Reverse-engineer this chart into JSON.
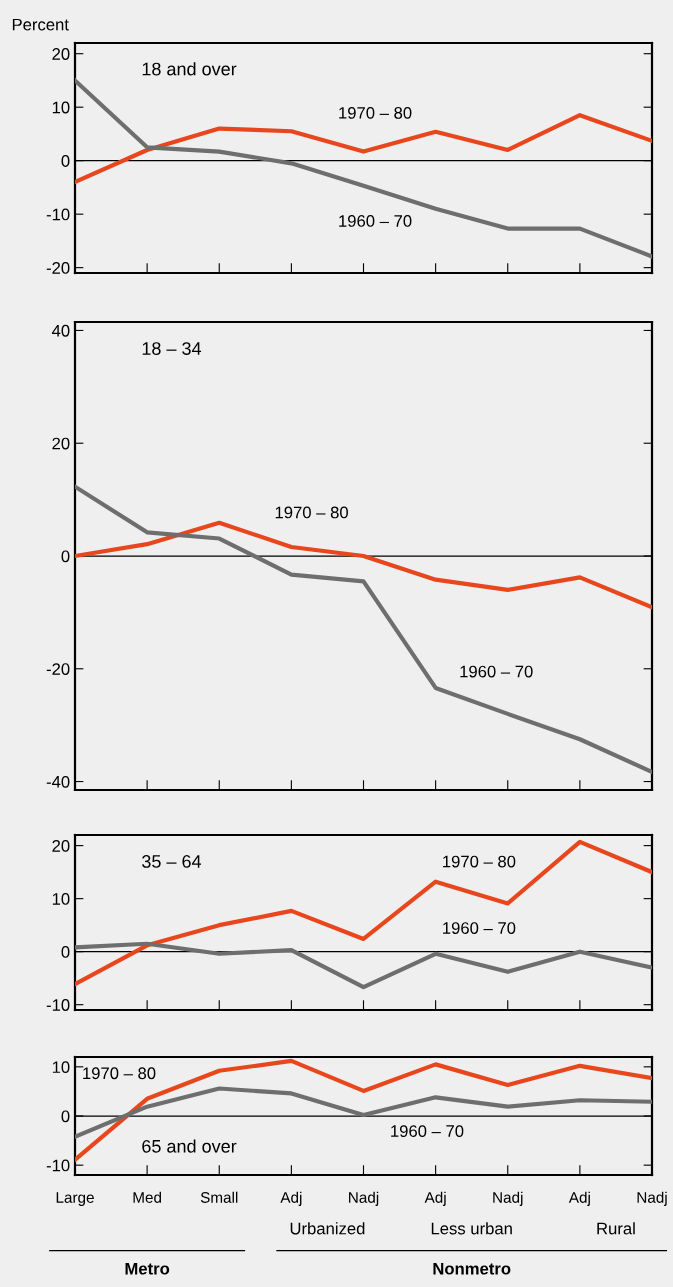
{
  "chart_data": [
    {
      "type": "line",
      "title": "18 and over",
      "ylabel": "Percent",
      "categories": [
        null,
        null,
        null,
        null,
        null,
        null,
        null,
        null,
        null
      ],
      "ylim": [
        -21,
        22
      ],
      "yticks": [
        -20,
        -10,
        0,
        10,
        20
      ],
      "tick_labels": "y",
      "ref_lines": [
        {
          "axis": "y",
          "value": 0,
          "color": "#000000"
        }
      ],
      "series": [
        {
          "name": "1970 – 80",
          "color": "#e8461c",
          "values": [
            -4,
            2,
            6,
            5.5,
            1.7,
            5.4,
            2,
            8.5,
            3.7
          ]
        },
        {
          "name": "1960 – 70",
          "color": "#6e6e6e",
          "values": [
            15,
            2.5,
            1.7,
            -0.5,
            -4.7,
            -9,
            -12.7,
            -12.7,
            -17.9
          ]
        }
      ]
    },
    {
      "type": "line",
      "title": "18 – 34",
      "categories": [
        null,
        null,
        null,
        null,
        null,
        null,
        null,
        null,
        null
      ],
      "ylim": [
        -41.5,
        41.5
      ],
      "yticks": [
        -40,
        -20,
        0,
        20,
        40
      ],
      "tick_labels": "y",
      "ref_lines": [
        {
          "axis": "y",
          "value": 0,
          "color": "#000000"
        }
      ],
      "series": [
        {
          "name": "1970 – 80",
          "color": "#e8461c",
          "values": [
            0,
            2.1,
            5.9,
            1.6,
            0,
            -4.2,
            -6,
            -3.8,
            -9.1
          ]
        },
        {
          "name": "1960 – 70",
          "color": "#6e6e6e",
          "values": [
            12.3,
            4.2,
            3.1,
            -3.3,
            -4.5,
            -23.4,
            -28,
            -32.5,
            -38.3
          ]
        }
      ]
    },
    {
      "type": "line",
      "title": "35 – 64",
      "categories": [
        null,
        null,
        null,
        null,
        null,
        null,
        null,
        null,
        null
      ],
      "ylim": [
        -11,
        22
      ],
      "yticks": [
        -10,
        0,
        10,
        20
      ],
      "tick_labels": "y",
      "ref_lines": [
        {
          "axis": "y",
          "value": 0,
          "color": "#000000"
        }
      ],
      "series": [
        {
          "name": "1970 – 80",
          "color": "#e8461c",
          "values": [
            -6.1,
            1.2,
            5,
            7.7,
            2.4,
            13.2,
            9.1,
            20.7,
            15
          ]
        },
        {
          "name": "1960 – 70",
          "color": "#6e6e6e",
          "values": [
            0.8,
            1.5,
            -0.4,
            0.3,
            -6.7,
            -0.4,
            -3.8,
            0,
            -3
          ]
        }
      ]
    },
    {
      "type": "line",
      "title": "65 and over",
      "categories": [
        "Large",
        "Med",
        "Small",
        "Adj",
        "Nadj",
        "Adj",
        "Nadj",
        "Adj",
        "Nadj"
      ],
      "ylim": [
        -12,
        12
      ],
      "yticks": [
        -10,
        0,
        10
      ],
      "ref_lines": [
        {
          "axis": "y",
          "value": 0,
          "color": "#000000"
        }
      ],
      "annotations": [
        "Urbanized",
        "Less urban",
        "Rural",
        "Metro",
        "Nonmetro"
      ],
      "series": [
        {
          "name": "1970 – 80",
          "color": "#e8461c",
          "values": [
            -8.9,
            3.5,
            9.2,
            11.2,
            5.1,
            10.5,
            6.3,
            10.2,
            7.7
          ]
        },
        {
          "name": "1960 – 70",
          "color": "#6e6e6e",
          "values": [
            -4.2,
            1.9,
            5.6,
            4.6,
            0.2,
            3.8,
            1.9,
            3.2,
            2.9
          ]
        }
      ]
    }
  ]
}
